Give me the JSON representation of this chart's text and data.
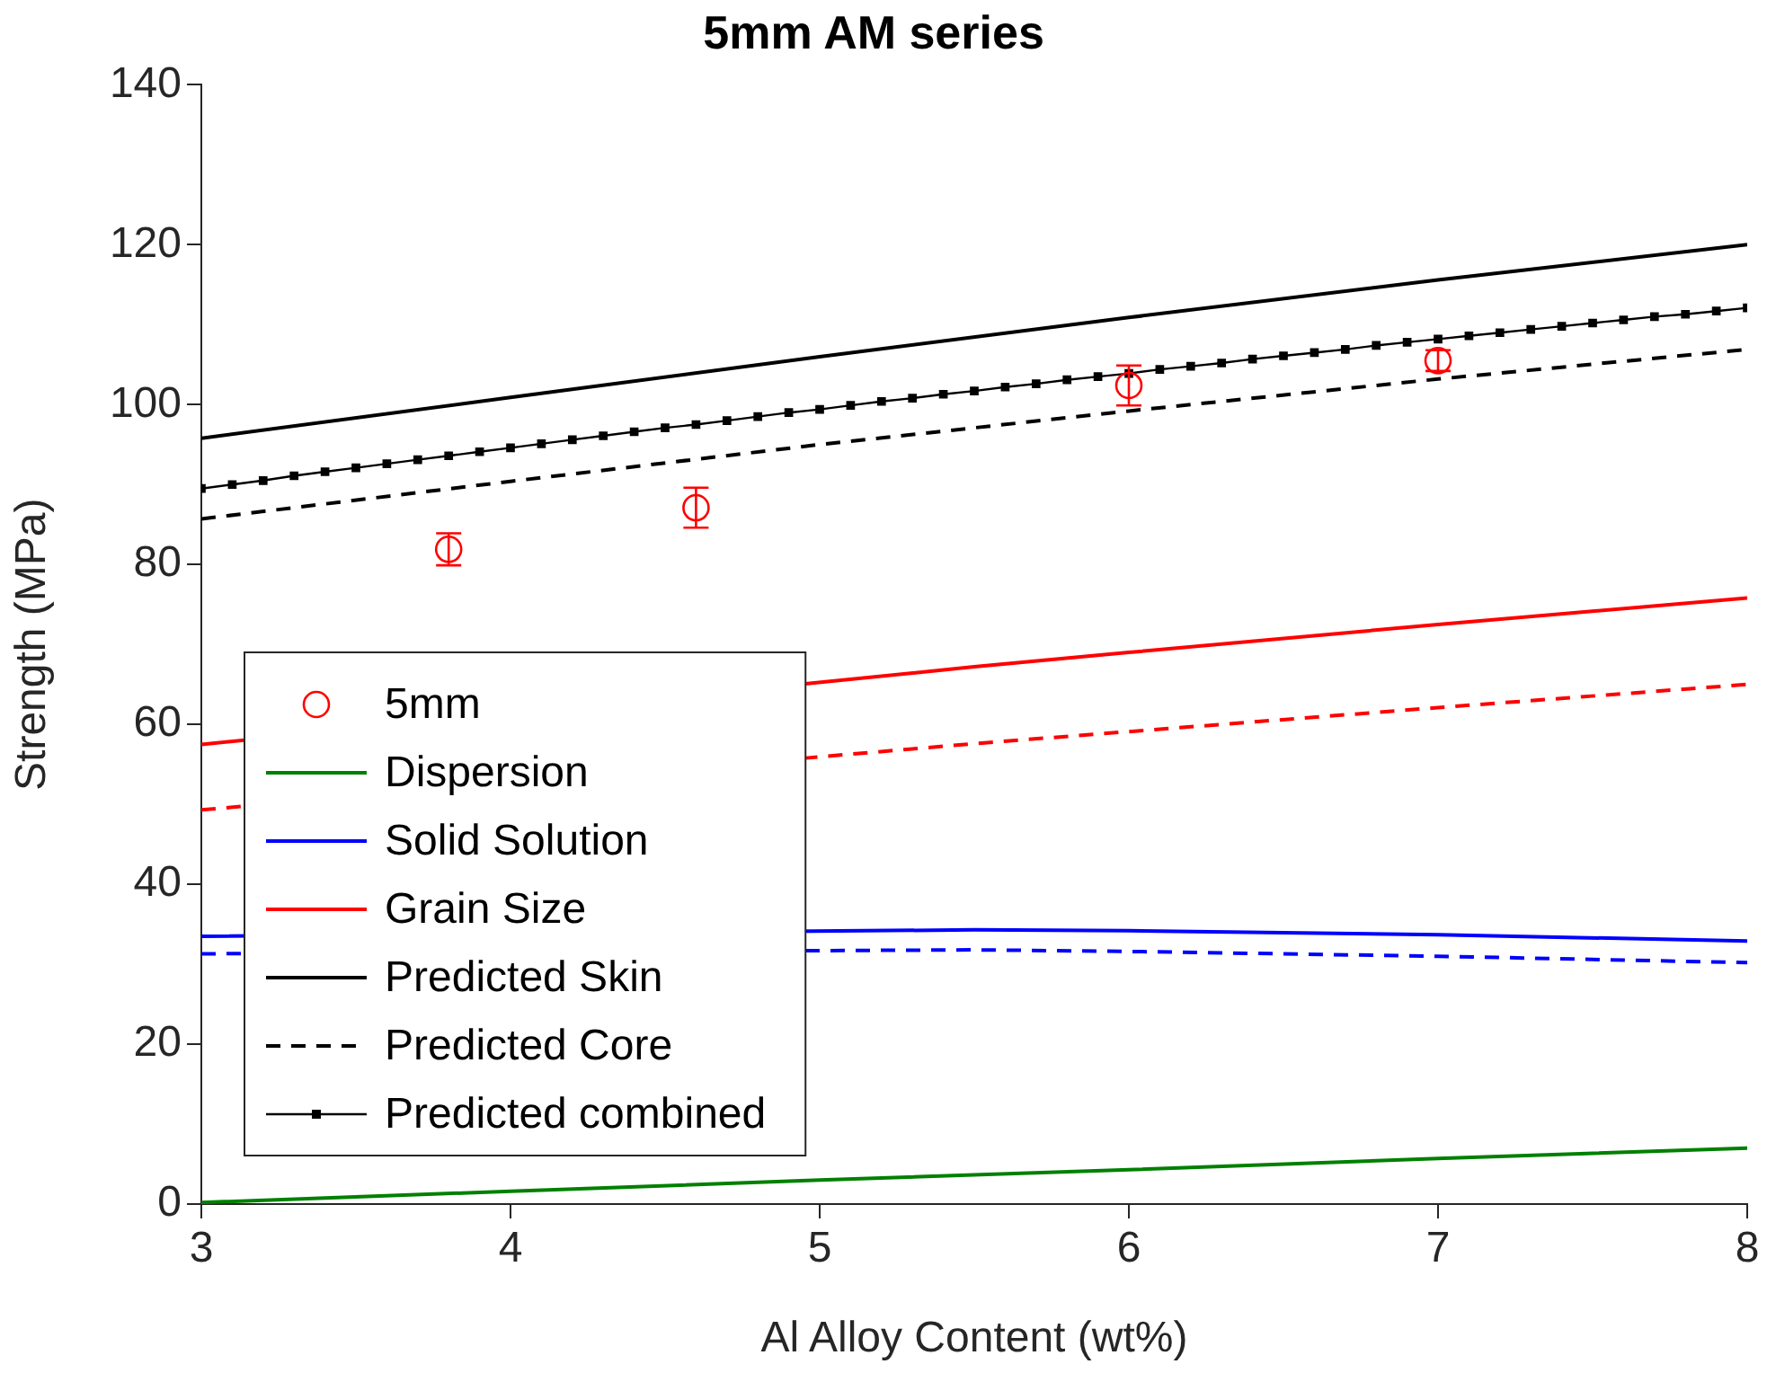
{
  "chart_data": {
    "type": "line",
    "title": "5mm AM series",
    "xlabel": "Al Alloy Content (wt%)",
    "ylabel": "Strength (MPa)",
    "xlim": [
      3,
      8
    ],
    "xticks": [
      3,
      4,
      5,
      6,
      7,
      8
    ],
    "ylim": [
      0,
      140
    ],
    "yticks": [
      0,
      20,
      40,
      60,
      80,
      100,
      120,
      140
    ],
    "grid": false,
    "legend": "bottom left",
    "series": [
      {
        "name": "5mm",
        "type": "scatter",
        "marker": "circle",
        "color": "#ff0000",
        "x": [
          3.8,
          4.6,
          6.0,
          7.0
        ],
        "values": [
          81.9,
          87.1,
          102.4,
          105.5
        ],
        "errors": [
          2.0,
          2.5,
          2.5,
          1.3
        ]
      },
      {
        "name": "Dispersion",
        "color": "#008000",
        "line_style": "solid",
        "x": [
          3,
          4,
          5,
          6,
          7,
          8
        ],
        "values": [
          0.2,
          1.6,
          3.0,
          4.3,
          5.7,
          7.0
        ]
      },
      {
        "name": "Solid Solution",
        "color": "#0000ff",
        "line_style": "solid",
        "x": [
          3,
          5.5,
          6,
          7,
          8
        ],
        "values": [
          33.5,
          34.3,
          34.2,
          33.7,
          32.9
        ]
      },
      {
        "color": "#0000ff",
        "line_style": "dashed",
        "x": [
          3,
          5.5,
          6,
          7,
          8
        ],
        "values": [
          31.3,
          31.8,
          31.6,
          31.0,
          30.2
        ]
      },
      {
        "name": "Grain Size",
        "color": "#ff0000",
        "line_style": "solid",
        "x": [
          3,
          5.5,
          6,
          7,
          8
        ],
        "values": [
          57.5,
          67.2,
          69.0,
          72.5,
          75.8
        ]
      },
      {
        "color": "#ff0000",
        "line_style": "dashed",
        "x": [
          3,
          5.5,
          6,
          7,
          8
        ],
        "values": [
          49.3,
          57.6,
          59.1,
          62.1,
          65.0
        ]
      },
      {
        "name": "Predicted Skin",
        "color": "#000000",
        "line_style": "solid",
        "x": [
          3,
          4,
          5,
          6,
          7,
          8
        ],
        "values": [
          95.8,
          100.9,
          106.0,
          110.9,
          115.6,
          120.0
        ]
      },
      {
        "name": "Predicted Core",
        "color": "#000000",
        "line_style": "dashed",
        "x": [
          3,
          4,
          5,
          6,
          7,
          8
        ],
        "values": [
          85.7,
          90.4,
          95.0,
          99.2,
          103.2,
          106.9
        ]
      },
      {
        "name": "Predicted combined",
        "color": "#000000",
        "line_style": "solid",
        "marker": "square",
        "x": [
          3,
          3.1,
          3.2,
          3.3,
          3.4,
          3.5,
          3.6,
          3.7,
          3.8,
          3.9,
          4,
          4.1,
          4.2,
          4.3,
          4.4,
          4.5,
          4.6,
          4.7,
          4.8,
          4.9,
          5,
          5.1,
          5.2,
          5.3,
          5.4,
          5.5,
          5.6,
          5.7,
          5.8,
          5.9,
          6,
          6.1,
          6.2,
          6.3,
          6.4,
          6.5,
          6.6,
          6.7,
          6.8,
          6.9,
          7,
          7.1,
          7.2,
          7.3,
          7.4,
          7.5,
          7.6,
          7.7,
          7.8,
          7.9,
          8
        ],
        "values": [
          89.5,
          90.0,
          90.5,
          91.1,
          91.6,
          92.1,
          92.6,
          93.1,
          93.6,
          94.1,
          94.6,
          95.1,
          95.6,
          96.1,
          96.6,
          97.1,
          97.5,
          98.0,
          98.5,
          99.0,
          99.4,
          99.9,
          100.4,
          100.8,
          101.3,
          101.7,
          102.2,
          102.6,
          103.1,
          103.5,
          103.9,
          104.4,
          104.8,
          105.2,
          105.7,
          106.1,
          106.5,
          106.9,
          107.4,
          107.8,
          108.2,
          108.6,
          109.0,
          109.4,
          109.8,
          110.2,
          110.6,
          111.0,
          111.3,
          111.7,
          112.1
        ]
      }
    ]
  }
}
